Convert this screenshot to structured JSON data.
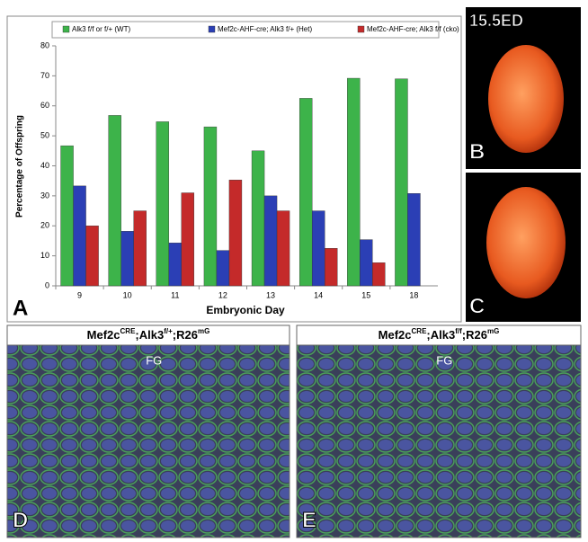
{
  "chart_data": {
    "type": "bar",
    "categories": [
      "9",
      "10",
      "11",
      "12",
      "13",
      "14",
      "15",
      "18"
    ],
    "series": [
      {
        "name": "Alk3 f/f or f/+ (WT)",
        "color": "#3db34a",
        "values": [
          46.7,
          56.8,
          54.7,
          53,
          45,
          62.5,
          69.2,
          69
        ]
      },
      {
        "name": "Mef2c-AHF-cre; Alk3 f/+ (Het)",
        "color": "#2b3fb5",
        "values": [
          33.3,
          18.2,
          14.3,
          11.8,
          30,
          25,
          15.4,
          30.8
        ]
      },
      {
        "name": "Mef2c-AHF-cre; Alk3 f/f (cko)",
        "color": "#c42a2a",
        "values": [
          20,
          25,
          31,
          35.3,
          25,
          12.5,
          7.7,
          0
        ]
      }
    ],
    "ylim": [
      0,
      80
    ],
    "yticks": [
      0,
      10,
      20,
      30,
      40,
      50,
      60,
      70,
      80
    ],
    "x_label": "Embryonic Day",
    "y_label": "Percentage of Offspring",
    "grid": false,
    "legend": "top",
    "panel_label": "A"
  },
  "photo_b": {
    "stage": "15.5ED",
    "label": "B"
  },
  "photo_c": {
    "label": "C"
  },
  "sections": [
    {
      "title_parts": [
        "Mef2c",
        "CRE",
        ";Alk3",
        "f/+",
        ";R26",
        "mG"
      ],
      "region": "FG",
      "label": "D"
    },
    {
      "title_parts": [
        "Mef2c",
        "CRE",
        ";Alk3",
        "f/f",
        ";R26",
        "mG"
      ],
      "region": "FG",
      "label": "E"
    }
  ]
}
